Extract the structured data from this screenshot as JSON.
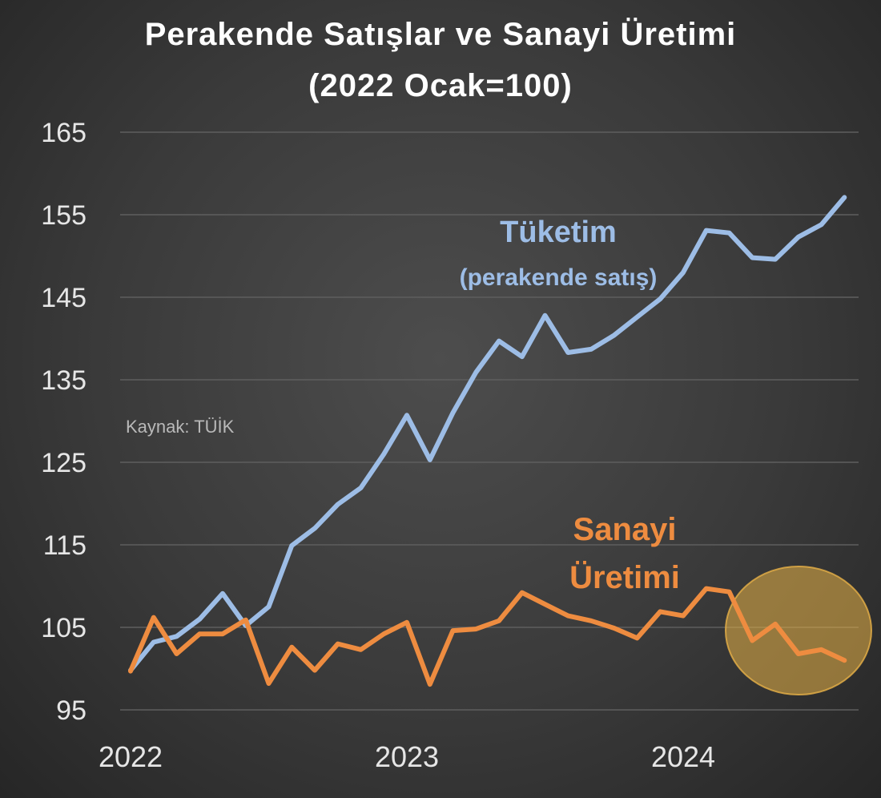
{
  "chart_data": {
    "type": "line",
    "title": "Perakende Satışlar ve Sanayi Üretimi",
    "subtitle": "(2022 Ocak=100)",
    "xlabel": "",
    "ylabel": "",
    "ylim": [
      95,
      165
    ],
    "yticks": [
      95,
      105,
      115,
      125,
      135,
      145,
      155,
      165
    ],
    "x_tick_labels": [
      "2022",
      "2023",
      "2024"
    ],
    "x_tick_months": [
      0,
      12,
      24
    ],
    "x_months": [
      0,
      1,
      2,
      3,
      4,
      5,
      6,
      7,
      8,
      9,
      10,
      11,
      12,
      13,
      14,
      15,
      16,
      17,
      18,
      19,
      20,
      21,
      22,
      23,
      24,
      25,
      26,
      27,
      28,
      29,
      30,
      31,
      32,
      33,
      34,
      35,
      36
    ],
    "grid": true,
    "series": [
      {
        "name": "Tüketim",
        "color": "#9dbde6",
        "values": [
          99.8,
          103.2,
          103.9,
          106.0,
          109.1,
          105.2,
          107.5,
          114.9,
          117.0,
          119.9,
          121.9,
          126.0,
          130.7,
          125.3,
          131.0,
          135.9,
          139.7,
          137.8,
          142.8,
          138.3,
          138.7,
          140.4,
          142.6,
          144.8,
          148.0,
          153.1,
          152.8,
          149.8,
          149.6,
          152.3,
          153.8,
          157.1
        ]
      },
      {
        "name": "Sanayi Üretimi",
        "color": "#ee8c40",
        "values": [
          99.7,
          106.2,
          101.8,
          104.2,
          104.2,
          105.9,
          98.2,
          102.6,
          99.8,
          103.0,
          102.3,
          104.2,
          105.6,
          98.1,
          104.6,
          104.8,
          105.8,
          109.2,
          107.8,
          106.4,
          105.8,
          104.9,
          103.7,
          106.9,
          106.4,
          109.7,
          109.3,
          103.4,
          105.4,
          101.8,
          102.3,
          101.0
        ]
      }
    ],
    "annotations": {
      "consumption_label": "Tüketim",
      "consumption_sublabel": "(perakende satış)",
      "industry_label_line1": "Sanayi",
      "industry_label_line2": "Üretimi",
      "source": "Kaynak: TÜİK"
    },
    "highlight_color": "#e8b247"
  }
}
